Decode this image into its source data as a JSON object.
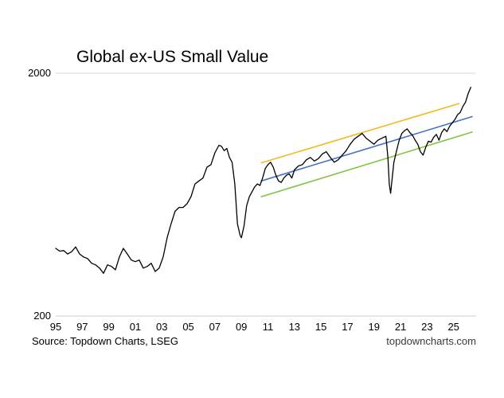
{
  "chart_data": {
    "type": "line",
    "title": "Global ex-US Small Value",
    "xlabel": "",
    "ylabel": "",
    "y_scale": "log",
    "ylim": [
      200,
      2000
    ],
    "xlim": [
      1995,
      2026.7
    ],
    "grid": "horizontal",
    "legend": "none",
    "y_ticks": [
      {
        "value": 2000,
        "label": "2000"
      },
      {
        "value": 200,
        "label": "200"
      }
    ],
    "x_ticks": [
      {
        "value": 1995,
        "label": "95"
      },
      {
        "value": 1997,
        "label": "97"
      },
      {
        "value": 1999,
        "label": "99"
      },
      {
        "value": 2001,
        "label": "01"
      },
      {
        "value": 2003,
        "label": "03"
      },
      {
        "value": 2005,
        "label": "05"
      },
      {
        "value": 2007,
        "label": "07"
      },
      {
        "value": 2009,
        "label": "09"
      },
      {
        "value": 2011,
        "label": "11"
      },
      {
        "value": 2013,
        "label": "13"
      },
      {
        "value": 2015,
        "label": "15"
      },
      {
        "value": 2017,
        "label": "17"
      },
      {
        "value": 2019,
        "label": "19"
      },
      {
        "value": 2021,
        "label": "21"
      },
      {
        "value": 2023,
        "label": "23"
      },
      {
        "value": 2025,
        "label": "25"
      }
    ],
    "series": [
      {
        "color": "#000000",
        "x": [
          1995.0,
          1995.3,
          1995.6,
          1995.9,
          1996.2,
          1996.5,
          1996.8,
          1997.1,
          1997.4,
          1997.7,
          1998.0,
          1998.3,
          1998.6,
          1998.9,
          1999.2,
          1999.5,
          1999.8,
          2000.1,
          2000.4,
          2000.7,
          2001.0,
          2001.3,
          2001.6,
          2001.9,
          2002.2,
          2002.5,
          2002.8,
          2003.1,
          2003.4,
          2003.7,
          2004.0,
          2004.3,
          2004.6,
          2004.9,
          2005.2,
          2005.5,
          2005.8,
          2006.1,
          2006.4,
          2006.7,
          2007.0,
          2007.3,
          2007.5,
          2007.7,
          2007.9,
          2008.1,
          2008.3,
          2008.5,
          2008.7,
          2008.9,
          2009.0,
          2009.2,
          2009.4,
          2009.6,
          2009.8,
          2010.0,
          2010.2,
          2010.4,
          2010.6,
          2010.8,
          2011.0,
          2011.2,
          2011.4,
          2011.6,
          2011.8,
          2012.0,
          2012.2,
          2012.4,
          2012.6,
          2012.8,
          2013.0,
          2013.3,
          2013.6,
          2013.9,
          2014.2,
          2014.5,
          2014.8,
          2015.1,
          2015.4,
          2015.7,
          2016.0,
          2016.3,
          2016.6,
          2016.9,
          2017.2,
          2017.5,
          2017.8,
          2018.1,
          2018.4,
          2018.7,
          2019.0,
          2019.3,
          2019.6,
          2019.9,
          2020.05,
          2020.15,
          2020.25,
          2020.35,
          2020.5,
          2020.7,
          2020.9,
          2021.1,
          2021.3,
          2021.5,
          2021.7,
          2021.9,
          2022.1,
          2022.3,
          2022.5,
          2022.7,
          2022.9,
          2023.1,
          2023.3,
          2023.5,
          2023.7,
          2023.9,
          2024.1,
          2024.3,
          2024.5,
          2024.7,
          2024.9,
          2025.1,
          2025.3,
          2025.5,
          2025.7,
          2025.9,
          2026.1,
          2026.3
        ],
        "values": [
          380,
          370,
          372,
          360,
          368,
          385,
          360,
          350,
          345,
          330,
          325,
          315,
          300,
          325,
          320,
          310,
          350,
          380,
          360,
          340,
          335,
          340,
          315,
          320,
          330,
          305,
          315,
          350,
          420,
          480,
          540,
          560,
          560,
          580,
          620,
          700,
          720,
          740,
          820,
          840,
          940,
          1010,
          1000,
          960,
          980,
          900,
          860,
          700,
          480,
          430,
          420,
          470,
          570,
          620,
          650,
          680,
          700,
          690,
          740,
          810,
          840,
          860,
          820,
          760,
          720,
          710,
          740,
          760,
          770,
          740,
          800,
          830,
          840,
          880,
          900,
          870,
          890,
          930,
          950,
          900,
          860,
          880,
          920,
          960,
          1020,
          1070,
          1100,
          1130,
          1080,
          1050,
          1020,
          1060,
          1080,
          1100,
          900,
          700,
          640,
          720,
          860,
          960,
          1060,
          1130,
          1160,
          1180,
          1140,
          1110,
          1060,
          1020,
          950,
          920,
          990,
          1050,
          1040,
          1090,
          1120,
          1060,
          1140,
          1180,
          1150,
          1210,
          1250,
          1290,
          1350,
          1380,
          1460,
          1520,
          1650,
          1750
        ]
      },
      {
        "color": "#f5b920",
        "x": [
          2010.5,
          2025.4
        ],
        "values": [
          855,
          1500
        ]
      },
      {
        "color": "#4a70c8",
        "x": [
          2010.5,
          2026.4
        ],
        "values": [
          720,
          1325
        ]
      },
      {
        "color": "#82c341",
        "x": [
          2010.5,
          2026.4
        ],
        "values": [
          620,
          1145
        ]
      }
    ]
  },
  "footer": {
    "source": "Source: Topdown Charts, LSEG",
    "site": "topdowncharts.com"
  }
}
